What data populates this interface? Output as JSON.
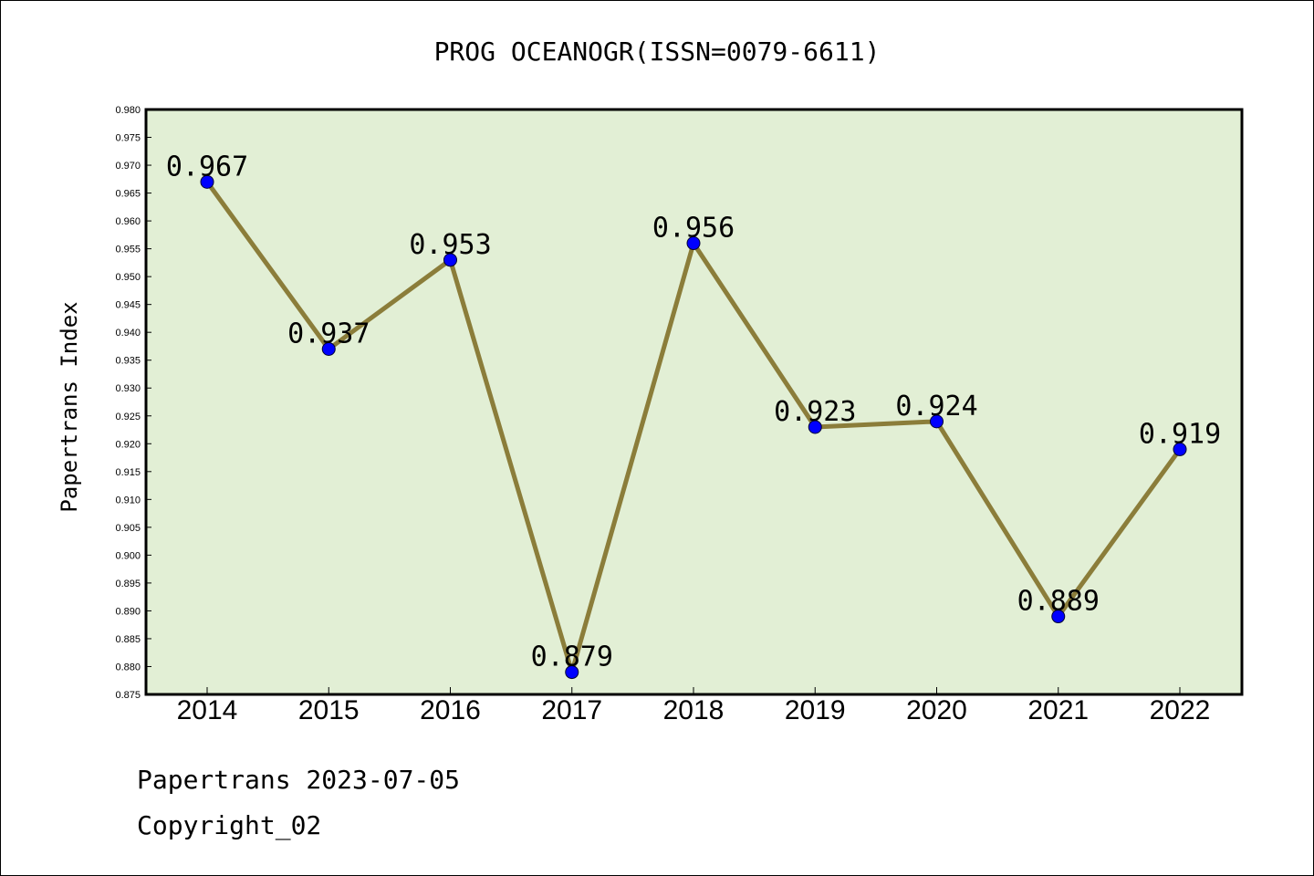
{
  "chart_data": {
    "type": "line",
    "title": "PROG OCEANOGR(ISSN=0079-6611)",
    "ylabel": "Papertrans Index",
    "xlabel": "",
    "categories": [
      "2014",
      "2015",
      "2016",
      "2017",
      "2018",
      "2019",
      "2020",
      "2021",
      "2022"
    ],
    "values": [
      0.967,
      0.937,
      0.953,
      0.879,
      0.956,
      0.923,
      0.924,
      0.889,
      0.919
    ],
    "labels": [
      "0.967",
      "0.937",
      "0.953",
      "0.879",
      "0.956",
      "0.923",
      "0.924",
      "0.889",
      "0.919"
    ],
    "ylim": [
      0.875,
      0.98
    ],
    "yticks": [
      "0.875",
      "0.880",
      "0.885",
      "0.890",
      "0.895",
      "0.900",
      "0.905",
      "0.910",
      "0.915",
      "0.920",
      "0.925",
      "0.930",
      "0.935",
      "0.940",
      "0.945",
      "0.950",
      "0.955",
      "0.960",
      "0.965",
      "0.970",
      "0.975",
      "0.980"
    ],
    "grid": false,
    "colors": {
      "plot_background": "#e2efd5",
      "line": "#8b7d3a",
      "marker": "#0000ff"
    }
  },
  "footer": {
    "line1": "Papertrans 2023-07-05",
    "line2": "Copyright_02"
  }
}
